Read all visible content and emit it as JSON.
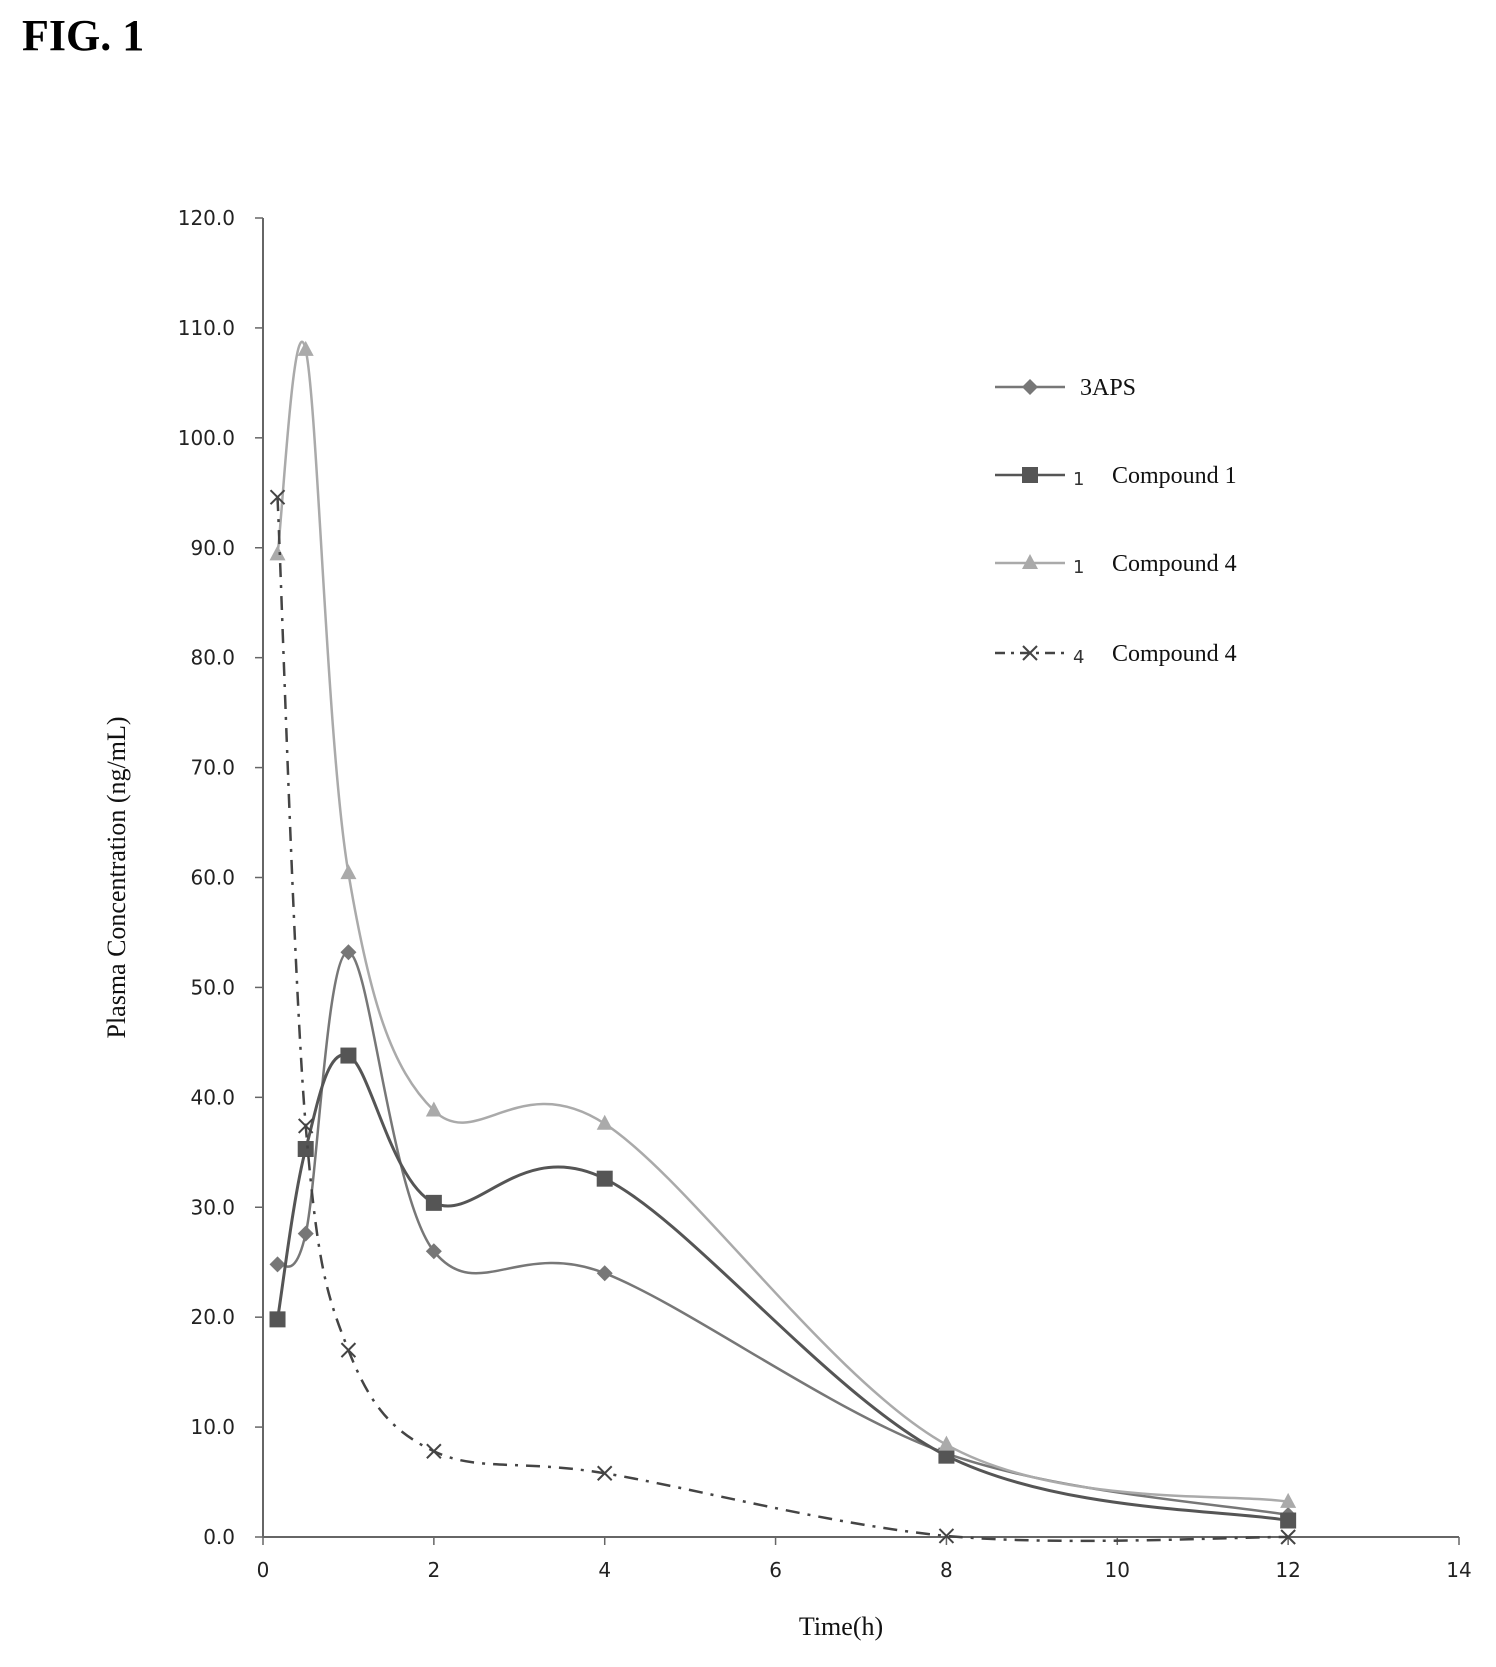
{
  "figure_label": "FIG. 1",
  "chart_data": {
    "type": "line",
    "xlabel": "Time(h)",
    "ylabel": "Plasma Concentration (ng/mL)",
    "xlim": [
      0,
      14
    ],
    "ylim": [
      0,
      120
    ],
    "xticks": [
      0,
      2,
      4,
      6,
      8,
      10,
      12,
      14
    ],
    "yticks": [
      "0.0",
      "10.0",
      "20.0",
      "30.0",
      "40.0",
      "50.0",
      "60.0",
      "70.0",
      "80.0",
      "90.0",
      "100.0",
      "110.0",
      "120.0"
    ],
    "grid": false,
    "legend_position": "top-right",
    "series": [
      {
        "name": "3APS",
        "tag": "",
        "marker": "diamond",
        "color": "#777777",
        "dash": "solid",
        "points": [
          [
            0.17,
            24.8
          ],
          [
            0.5,
            27.6
          ],
          [
            1,
            53.2
          ],
          [
            2,
            26.0
          ],
          [
            4,
            24.0
          ],
          [
            8,
            7.6
          ],
          [
            12,
            2.0
          ]
        ]
      },
      {
        "name": "Compound 1",
        "tag": "1",
        "marker": "square",
        "color": "#555555",
        "dash": "solid",
        "points": [
          [
            0.17,
            19.8
          ],
          [
            0.5,
            35.3
          ],
          [
            1,
            43.8
          ],
          [
            2,
            30.4
          ],
          [
            4,
            32.6
          ],
          [
            8,
            7.4
          ],
          [
            12,
            1.5
          ]
        ]
      },
      {
        "name": "Compound 4",
        "tag": "1",
        "marker": "triangle",
        "color": "#aaaaaa",
        "dash": "solid",
        "points": [
          [
            0.17,
            89.4
          ],
          [
            0.5,
            108.0
          ],
          [
            1,
            60.4
          ],
          [
            2,
            38.8
          ],
          [
            4,
            37.6
          ],
          [
            8,
            8.4
          ],
          [
            12,
            3.2
          ]
        ]
      },
      {
        "name": "Compound 4",
        "tag": "4",
        "marker": "x",
        "color": "#444444",
        "dash": "dashdot",
        "points": [
          [
            0.17,
            94.6
          ],
          [
            0.5,
            37.4
          ],
          [
            1,
            17.0
          ],
          [
            2,
            7.8
          ],
          [
            4,
            5.8
          ],
          [
            8,
            0.1
          ],
          [
            12,
            0.0
          ]
        ]
      }
    ]
  }
}
